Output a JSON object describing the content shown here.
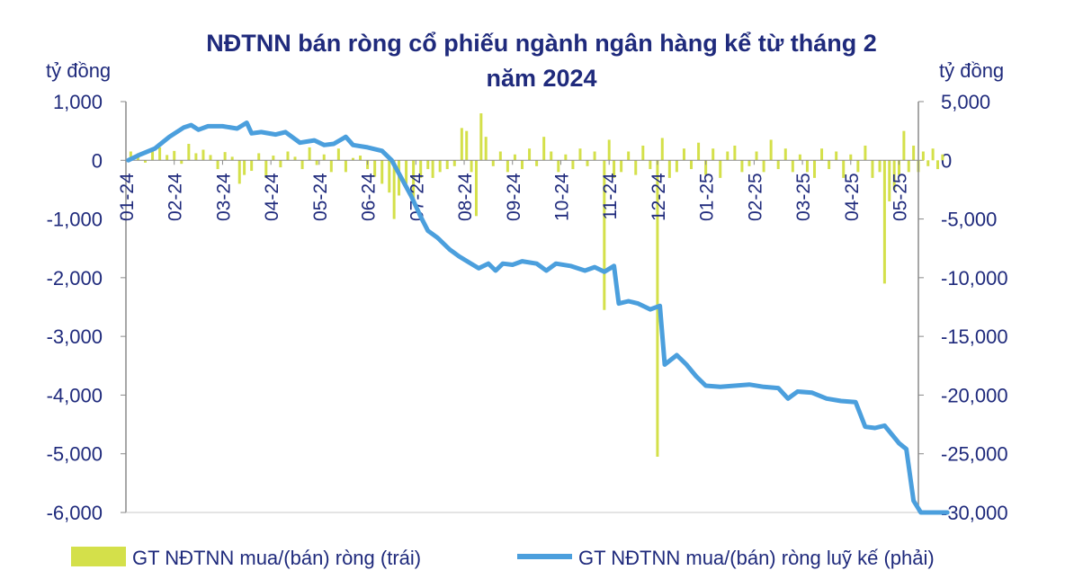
{
  "chart_data": {
    "type": "bar+line",
    "title_lines": [
      "NĐTNN bán ròng cổ phiếu ngành ngân hàng kể từ tháng 2",
      "năm 2024"
    ],
    "left_axis": {
      "unit": "tỷ đồng",
      "ylim": [
        -6000,
        1000
      ],
      "ticks": [
        1000,
        0,
        -1000,
        -2000,
        -3000,
        -4000,
        -5000,
        -6000
      ],
      "tick_labels": [
        "1,000",
        "0",
        "-1,000",
        "-2,000",
        "-3,000",
        "-4,000",
        "-5,000",
        "-6,000"
      ]
    },
    "right_axis": {
      "unit": "tỷ đồng",
      "ylim": [
        -30000,
        5000
      ],
      "ticks": [
        5000,
        0,
        -5000,
        -10000,
        -15000,
        -20000,
        -25000,
        -30000
      ],
      "tick_labels": [
        "5,000",
        "0",
        "-5,000",
        "-10,000",
        "-15,000",
        "-20,000",
        "-25,000",
        "-30,000"
      ]
    },
    "x_range_months": [
      0,
      16.4
    ],
    "x_ticks": [
      "01-24",
      "02-24",
      "03-24",
      "04-24",
      "05-24",
      "06-24",
      "07-24",
      "08-24",
      "09-24",
      "10-24",
      "11-24",
      "12-24",
      "01-25",
      "02-25",
      "03-25",
      "04-25",
      "05-25"
    ],
    "series": [
      {
        "name": "GT NĐTNN mua/(bán) ròng (trái)",
        "type": "bar",
        "axis": "left",
        "color": "#d4e04a",
        "note": "daily values, approximate readings; x in months since 01-24",
        "points": [
          [
            0.1,
            150
          ],
          [
            0.25,
            120
          ],
          [
            0.4,
            -40
          ],
          [
            0.55,
            180
          ],
          [
            0.7,
            220
          ],
          [
            0.85,
            90
          ],
          [
            1.0,
            160
          ],
          [
            1.15,
            -60
          ],
          [
            1.3,
            280
          ],
          [
            1.45,
            120
          ],
          [
            1.6,
            180
          ],
          [
            1.75,
            90
          ],
          [
            1.9,
            -150
          ],
          [
            2.05,
            140
          ],
          [
            2.2,
            60
          ],
          [
            2.35,
            -400
          ],
          [
            2.45,
            -250
          ],
          [
            2.6,
            -180
          ],
          [
            2.75,
            120
          ],
          [
            2.9,
            -300
          ],
          [
            3.05,
            80
          ],
          [
            3.2,
            -120
          ],
          [
            3.35,
            150
          ],
          [
            3.5,
            60
          ],
          [
            3.65,
            -150
          ],
          [
            3.8,
            220
          ],
          [
            3.95,
            -80
          ],
          [
            4.1,
            100
          ],
          [
            4.25,
            -200
          ],
          [
            4.4,
            200
          ],
          [
            4.55,
            -200
          ],
          [
            4.7,
            40
          ],
          [
            4.85,
            80
          ],
          [
            5.0,
            -150
          ],
          [
            5.15,
            -280
          ],
          [
            5.3,
            -400
          ],
          [
            5.45,
            -550
          ],
          [
            5.55,
            -1000
          ],
          [
            5.65,
            -600
          ],
          [
            5.8,
            -400
          ],
          [
            5.95,
            -700
          ],
          [
            6.1,
            -300
          ],
          [
            6.25,
            -150
          ],
          [
            6.35,
            -300
          ],
          [
            6.5,
            -200
          ],
          [
            6.65,
            -150
          ],
          [
            6.8,
            -100
          ],
          [
            6.95,
            550
          ],
          [
            7.05,
            500
          ],
          [
            7.15,
            -200
          ],
          [
            7.25,
            -950
          ],
          [
            7.35,
            800
          ],
          [
            7.45,
            400
          ],
          [
            7.6,
            -100
          ],
          [
            7.75,
            150
          ],
          [
            7.9,
            -200
          ],
          [
            8.05,
            100
          ],
          [
            8.2,
            -150
          ],
          [
            8.35,
            200
          ],
          [
            8.5,
            -100
          ],
          [
            8.65,
            400
          ],
          [
            8.8,
            150
          ],
          [
            8.95,
            -200
          ],
          [
            9.1,
            100
          ],
          [
            9.25,
            -150
          ],
          [
            9.4,
            200
          ],
          [
            9.55,
            -100
          ],
          [
            9.7,
            150
          ],
          [
            9.9,
            -2550
          ],
          [
            10.0,
            350
          ],
          [
            10.1,
            -300
          ],
          [
            10.25,
            -200
          ],
          [
            10.4,
            150
          ],
          [
            10.55,
            -250
          ],
          [
            10.7,
            250
          ],
          [
            10.85,
            -150
          ],
          [
            11.0,
            -5050
          ],
          [
            11.1,
            380
          ],
          [
            11.25,
            -300
          ],
          [
            11.4,
            -200
          ],
          [
            11.55,
            200
          ],
          [
            11.7,
            -150
          ],
          [
            11.85,
            300
          ],
          [
            12.0,
            -250
          ],
          [
            12.15,
            200
          ],
          [
            12.3,
            -300
          ],
          [
            12.45,
            150
          ],
          [
            12.6,
            250
          ],
          [
            12.75,
            -200
          ],
          [
            12.9,
            -100
          ],
          [
            13.05,
            150
          ],
          [
            13.2,
            -200
          ],
          [
            13.35,
            350
          ],
          [
            13.5,
            -150
          ],
          [
            13.65,
            200
          ],
          [
            13.8,
            -200
          ],
          [
            13.95,
            100
          ],
          [
            14.1,
            -200
          ],
          [
            14.25,
            -300
          ],
          [
            14.4,
            200
          ],
          [
            14.55,
            -150
          ],
          [
            14.7,
            150
          ],
          [
            14.85,
            -300
          ],
          [
            15.0,
            100
          ],
          [
            15.15,
            -200
          ],
          [
            15.3,
            250
          ],
          [
            15.45,
            -300
          ],
          [
            15.6,
            -200
          ],
          [
            15.7,
            -2100
          ],
          [
            15.8,
            -700
          ],
          [
            15.9,
            -500
          ],
          [
            16.0,
            -250
          ],
          [
            16.1,
            500
          ],
          [
            16.2,
            -200
          ],
          [
            16.3,
            250
          ],
          [
            16.4,
            -200
          ],
          [
            16.5,
            150
          ],
          [
            16.6,
            -100
          ],
          [
            16.7,
            200
          ],
          [
            16.8,
            -150
          ],
          [
            16.9,
            100
          ]
        ]
      },
      {
        "name": "GT NĐTNN mua/(bán) ròng luỹ kế (phải)",
        "type": "line",
        "axis": "right",
        "color": "#4b9fdd",
        "note": "cumulative values, approximate readings; x in months since 01-24",
        "points": [
          [
            0.05,
            0
          ],
          [
            0.3,
            500
          ],
          [
            0.6,
            1000
          ],
          [
            0.9,
            2000
          ],
          [
            1.2,
            2800
          ],
          [
            1.35,
            3000
          ],
          [
            1.5,
            2600
          ],
          [
            1.7,
            2900
          ],
          [
            2.0,
            2900
          ],
          [
            2.3,
            2700
          ],
          [
            2.5,
            3200
          ],
          [
            2.6,
            2300
          ],
          [
            2.8,
            2400
          ],
          [
            3.1,
            2200
          ],
          [
            3.3,
            2400
          ],
          [
            3.6,
            1500
          ],
          [
            3.9,
            1700
          ],
          [
            4.1,
            1300
          ],
          [
            4.3,
            1400
          ],
          [
            4.55,
            2000
          ],
          [
            4.7,
            1300
          ],
          [
            5.0,
            1100
          ],
          [
            5.3,
            800
          ],
          [
            5.5,
            0
          ],
          [
            5.7,
            -1500
          ],
          [
            5.9,
            -3000
          ],
          [
            6.1,
            -4800
          ],
          [
            6.25,
            -6000
          ],
          [
            6.45,
            -6600
          ],
          [
            6.7,
            -7600
          ],
          [
            6.9,
            -8200
          ],
          [
            7.1,
            -8700
          ],
          [
            7.3,
            -9200
          ],
          [
            7.5,
            -8800
          ],
          [
            7.65,
            -9400
          ],
          [
            7.8,
            -8800
          ],
          [
            8.0,
            -8900
          ],
          [
            8.2,
            -8600
          ],
          [
            8.5,
            -8800
          ],
          [
            8.7,
            -9400
          ],
          [
            8.9,
            -8800
          ],
          [
            9.2,
            -9000
          ],
          [
            9.5,
            -9400
          ],
          [
            9.7,
            -9100
          ],
          [
            9.9,
            -9500
          ],
          [
            10.1,
            -9000
          ],
          [
            10.2,
            -12200
          ],
          [
            10.4,
            -12000
          ],
          [
            10.6,
            -12200
          ],
          [
            10.85,
            -12700
          ],
          [
            11.05,
            -12400
          ],
          [
            11.15,
            -17400
          ],
          [
            11.4,
            -16600
          ],
          [
            11.6,
            -17400
          ],
          [
            11.8,
            -18400
          ],
          [
            12.0,
            -19200
          ],
          [
            12.3,
            -19300
          ],
          [
            12.6,
            -19200
          ],
          [
            12.9,
            -19100
          ],
          [
            13.2,
            -19300
          ],
          [
            13.5,
            -19400
          ],
          [
            13.7,
            -20300
          ],
          [
            13.9,
            -19700
          ],
          [
            14.2,
            -19800
          ],
          [
            14.5,
            -20300
          ],
          [
            14.8,
            -20500
          ],
          [
            15.1,
            -20600
          ],
          [
            15.3,
            -22700
          ],
          [
            15.5,
            -22800
          ],
          [
            15.7,
            -22600
          ],
          [
            15.9,
            -23600
          ],
          [
            16.0,
            -24100
          ],
          [
            16.15,
            -24600
          ],
          [
            16.3,
            -29000
          ],
          [
            16.45,
            -30000
          ],
          [
            16.6,
            -30000
          ],
          [
            16.8,
            -30000
          ],
          [
            17.0,
            -30000
          ]
        ]
      }
    ]
  }
}
